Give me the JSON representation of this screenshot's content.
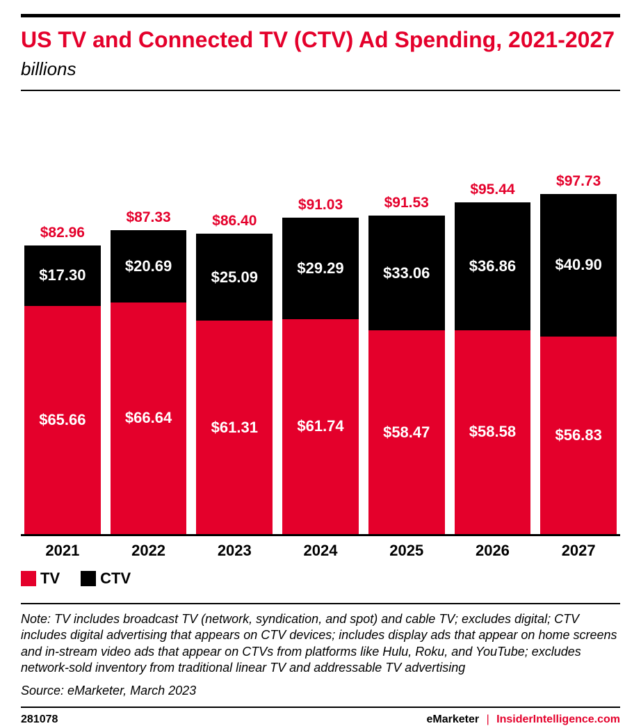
{
  "title": "US TV and Connected TV (CTV) Ad Spending, 2021-2027",
  "subtitle": "billions",
  "colors": {
    "accent": "#e4002b",
    "tv": "#e4002b",
    "ctv": "#000000",
    "text": "#000000",
    "segLabel": "#ffffff"
  },
  "chart": {
    "type": "stacked-bar",
    "maxValue": 100,
    "plotHeight": 500,
    "categories": [
      "2021",
      "2022",
      "2023",
      "2024",
      "2025",
      "2026",
      "2027"
    ],
    "series": [
      {
        "name": "TV",
        "color": "#e4002b"
      },
      {
        "name": "CTV",
        "color": "#000000"
      }
    ],
    "data": [
      {
        "tv": 65.66,
        "ctv": 17.3,
        "total": 82.96,
        "tvLabel": "$65.66",
        "ctvLabel": "$17.30",
        "totalLabel": "$82.96"
      },
      {
        "tv": 66.64,
        "ctv": 20.69,
        "total": 87.33,
        "tvLabel": "$66.64",
        "ctvLabel": "$20.69",
        "totalLabel": "$87.33"
      },
      {
        "tv": 61.31,
        "ctv": 25.09,
        "total": 86.4,
        "tvLabel": "$61.31",
        "ctvLabel": "$25.09",
        "totalLabel": "$86.40"
      },
      {
        "tv": 61.74,
        "ctv": 29.29,
        "total": 91.03,
        "tvLabel": "$61.74",
        "ctvLabel": "$29.29",
        "totalLabel": "$91.03"
      },
      {
        "tv": 58.47,
        "ctv": 33.06,
        "total": 91.53,
        "tvLabel": "$58.47",
        "ctvLabel": "$33.06",
        "totalLabel": "$91.53"
      },
      {
        "tv": 58.58,
        "ctv": 36.86,
        "total": 95.44,
        "tvLabel": "$58.58",
        "ctvLabel": "$36.86",
        "totalLabel": "$95.44"
      },
      {
        "tv": 56.83,
        "ctv": 40.9,
        "total": 97.73,
        "tvLabel": "$56.83",
        "ctvLabel": "$40.90",
        "totalLabel": "$97.73"
      }
    ]
  },
  "legend": {
    "tv": "TV",
    "ctv": "CTV"
  },
  "note": "Note: TV includes broadcast TV (network, syndication, and spot) and cable TV; excludes digital; CTV includes digital advertising that appears on CTV devices; includes display ads that appear on home screens and in-stream video ads that appear on CTVs from platforms like Hulu, Roku, and YouTube; excludes network-sold inventory from traditional linear TV and addressable TV advertising",
  "source": "Source: eMarketer, March 2023",
  "footer": {
    "id": "281078",
    "brand": "eMarketer",
    "site": "InsiderIntelligence.com"
  }
}
